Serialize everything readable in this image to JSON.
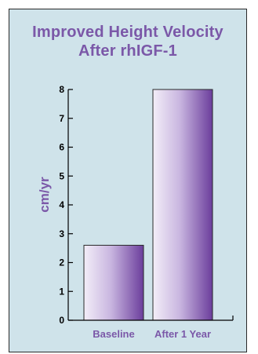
{
  "chart_data": {
    "type": "bar",
    "title": "Improved Height Velocity",
    "subtitle": "After rhIGF-1",
    "ylabel": "cm/yr",
    "xlabel": "",
    "categories": [
      "Baseline",
      "After 1 Year"
    ],
    "values": [
      2.6,
      8.0
    ],
    "ylim": [
      0,
      8
    ],
    "yticks": [
      "0",
      "1",
      "2",
      "3",
      "4",
      "5",
      "6",
      "7",
      "8"
    ],
    "grid": false,
    "colors": {
      "background": "#cfe3ea",
      "title": "#7b58a8",
      "bar_light": "#f3eef8",
      "bar_dark": "#6b3d9c"
    }
  }
}
